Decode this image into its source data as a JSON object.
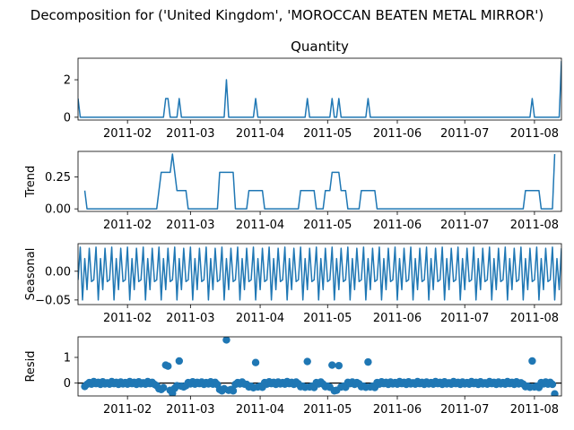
{
  "figure": {
    "suptitle": "Decomposition for ('United Kingdom', 'MOROCCAN BEATEN METAL MIRROR')",
    "line_color": "#1f77b4",
    "zero_line_color": "#000000"
  },
  "chart_data": [
    {
      "type": "line",
      "title": "Quantity",
      "ylabel": "",
      "x_ticks": [
        "2011-02",
        "2011-03",
        "2011-04",
        "2011-05",
        "2011-06",
        "2011-07",
        "2011-08"
      ],
      "y_ticks": [
        "0",
        "2"
      ],
      "ylim": [
        -0.15,
        3.15
      ],
      "start_date": "2011-01-10",
      "end_date": "2011-08-13",
      "spikes": [
        {
          "date": "2011-01-10",
          "value": 1
        },
        {
          "date": "2011-02-18",
          "value": 1
        },
        {
          "date": "2011-02-19",
          "value": 1
        },
        {
          "date": "2011-02-24",
          "value": 1
        },
        {
          "date": "2011-03-17",
          "value": 2
        },
        {
          "date": "2011-03-30",
          "value": 1
        },
        {
          "date": "2011-04-22",
          "value": 1
        },
        {
          "date": "2011-05-03",
          "value": 1
        },
        {
          "date": "2011-05-06",
          "value": 1
        },
        {
          "date": "2011-05-19",
          "value": 1
        },
        {
          "date": "2011-07-31",
          "value": 1
        },
        {
          "date": "2011-08-13",
          "value": 3
        }
      ],
      "baseline": 0
    },
    {
      "type": "line",
      "title": "",
      "ylabel": "Trend",
      "x_ticks": [
        "2011-02",
        "2011-03",
        "2011-04",
        "2011-05",
        "2011-06",
        "2011-07",
        "2011-08"
      ],
      "y_ticks": [
        "0.00",
        "0.25"
      ],
      "ylim": [
        -0.02,
        0.45
      ],
      "points": [
        [
          "2011-01-13",
          0.143
        ],
        [
          "2011-01-14",
          0.0
        ],
        [
          "2011-02-14",
          0.0
        ],
        [
          "2011-02-16",
          0.286
        ],
        [
          "2011-02-20",
          0.286
        ],
        [
          "2011-02-21",
          0.429
        ],
        [
          "2011-02-23",
          0.143
        ],
        [
          "2011-02-27",
          0.143
        ],
        [
          "2011-02-28",
          0.0
        ],
        [
          "2011-03-13",
          0.0
        ],
        [
          "2011-03-14",
          0.286
        ],
        [
          "2011-03-20",
          0.286
        ],
        [
          "2011-03-21",
          0.0
        ],
        [
          "2011-03-26",
          0.0
        ],
        [
          "2011-03-27",
          0.143
        ],
        [
          "2011-04-02",
          0.143
        ],
        [
          "2011-04-03",
          0.0
        ],
        [
          "2011-04-18",
          0.0
        ],
        [
          "2011-04-19",
          0.143
        ],
        [
          "2011-04-25",
          0.143
        ],
        [
          "2011-04-26",
          0.0
        ],
        [
          "2011-04-29",
          0.0
        ],
        [
          "2011-04-30",
          0.143
        ],
        [
          "2011-05-02",
          0.143
        ],
        [
          "2011-05-03",
          0.286
        ],
        [
          "2011-05-06",
          0.286
        ],
        [
          "2011-05-07",
          0.143
        ],
        [
          "2011-05-09",
          0.143
        ],
        [
          "2011-05-10",
          0.0
        ],
        [
          "2011-05-15",
          0.0
        ],
        [
          "2011-05-16",
          0.143
        ],
        [
          "2011-05-22",
          0.143
        ],
        [
          "2011-05-23",
          0.0
        ],
        [
          "2011-07-27",
          0.0
        ],
        [
          "2011-07-28",
          0.143
        ],
        [
          "2011-08-03",
          0.143
        ],
        [
          "2011-08-04",
          0.0
        ],
        [
          "2011-08-09",
          0.0
        ],
        [
          "2011-08-10",
          0.429
        ]
      ]
    },
    {
      "type": "line",
      "title": "",
      "ylabel": "Seasonal",
      "x_ticks": [
        "2011-02",
        "2011-03",
        "2011-04",
        "2011-05",
        "2011-06",
        "2011-07",
        "2011-08"
      ],
      "y_ticks": [
        "−0.05",
        "0.00"
      ],
      "ylim": [
        -0.058,
        0.048
      ],
      "start_date": "2011-01-10",
      "end_date": "2011-08-13",
      "weekly_pattern": [
        -0.015,
        0.042,
        -0.05,
        0.022,
        -0.032,
        0.04,
        -0.018
      ]
    },
    {
      "type": "scatter",
      "title": "",
      "ylabel": "Resid",
      "x_ticks": [
        "2011-02",
        "2011-03",
        "2011-04",
        "2011-05",
        "2011-06",
        "2011-07",
        "2011-08"
      ],
      "y_ticks": [
        "0",
        "1"
      ],
      "ylim": [
        -0.5,
        1.8
      ],
      "zero_line": 0,
      "points": [
        [
          "2011-01-13",
          -0.13
        ],
        [
          "2011-01-14",
          -0.05
        ],
        [
          "2011-01-15",
          0.02
        ],
        [
          "2011-01-16",
          -0.04
        ],
        [
          "2011-01-17",
          0.06
        ],
        [
          "2011-01-18",
          -0.02
        ],
        [
          "2011-01-19",
          0.03
        ],
        [
          "2011-01-20",
          -0.05
        ],
        [
          "2011-01-21",
          0.05
        ],
        [
          "2011-01-22",
          -0.03
        ],
        [
          "2011-01-23",
          0.01
        ],
        [
          "2011-01-24",
          -0.04
        ],
        [
          "2011-01-25",
          0.06
        ],
        [
          "2011-01-26",
          -0.02
        ],
        [
          "2011-01-27",
          0.03
        ],
        [
          "2011-01-28",
          -0.05
        ],
        [
          "2011-01-29",
          0.04
        ],
        [
          "2011-01-30",
          -0.03
        ],
        [
          "2011-01-31",
          0.02
        ],
        [
          "2011-02-01",
          -0.04
        ],
        [
          "2011-02-02",
          0.06
        ],
        [
          "2011-02-03",
          -0.02
        ],
        [
          "2011-02-04",
          0.03
        ],
        [
          "2011-02-05",
          -0.05
        ],
        [
          "2011-02-06",
          0.05
        ],
        [
          "2011-02-07",
          -0.03
        ],
        [
          "2011-02-08",
          0.01
        ],
        [
          "2011-02-09",
          -0.04
        ],
        [
          "2011-02-10",
          0.06
        ],
        [
          "2011-02-11",
          -0.02
        ],
        [
          "2011-02-12",
          0.03
        ],
        [
          "2011-02-13",
          -0.05
        ],
        [
          "2011-02-14",
          -0.1
        ],
        [
          "2011-02-15",
          -0.22
        ],
        [
          "2011-02-16",
          -0.25
        ],
        [
          "2011-02-17",
          -0.18
        ],
        [
          "2011-02-18",
          0.7
        ],
        [
          "2011-02-19",
          0.66
        ],
        [
          "2011-02-20",
          -0.28
        ],
        [
          "2011-02-21",
          -0.4
        ],
        [
          "2011-02-22",
          -0.2
        ],
        [
          "2011-02-23",
          -0.1
        ],
        [
          "2011-02-24",
          0.86
        ],
        [
          "2011-02-25",
          -0.12
        ],
        [
          "2011-02-26",
          -0.15
        ],
        [
          "2011-02-27",
          -0.1
        ],
        [
          "2011-02-28",
          0.02
        ],
        [
          "2011-03-01",
          -0.03
        ],
        [
          "2011-03-02",
          0.05
        ],
        [
          "2011-03-03",
          -0.04
        ],
        [
          "2011-03-04",
          0.03
        ],
        [
          "2011-03-05",
          -0.02
        ],
        [
          "2011-03-06",
          0.04
        ],
        [
          "2011-03-07",
          -0.05
        ],
        [
          "2011-03-08",
          0.02
        ],
        [
          "2011-03-09",
          -0.03
        ],
        [
          "2011-03-10",
          0.05
        ],
        [
          "2011-03-11",
          -0.04
        ],
        [
          "2011-03-12",
          0.03
        ],
        [
          "2011-03-13",
          -0.06
        ],
        [
          "2011-03-14",
          -0.25
        ],
        [
          "2011-03-15",
          -0.3
        ],
        [
          "2011-03-16",
          -0.22
        ],
        [
          "2011-03-17",
          1.68
        ],
        [
          "2011-03-18",
          -0.28
        ],
        [
          "2011-03-19",
          -0.25
        ],
        [
          "2011-03-20",
          -0.3
        ],
        [
          "2011-03-21",
          -0.05
        ],
        [
          "2011-03-22",
          0.02
        ],
        [
          "2011-03-23",
          -0.03
        ],
        [
          "2011-03-24",
          0.04
        ],
        [
          "2011-03-25",
          -0.04
        ],
        [
          "2011-03-26",
          -0.05
        ],
        [
          "2011-03-27",
          -0.15
        ],
        [
          "2011-03-28",
          -0.12
        ],
        [
          "2011-03-29",
          -0.18
        ],
        [
          "2011-03-30",
          0.8
        ],
        [
          "2011-03-31",
          -0.15
        ],
        [
          "2011-04-01",
          -0.12
        ],
        [
          "2011-04-02",
          -0.16
        ],
        [
          "2011-04-03",
          0.02
        ],
        [
          "2011-04-04",
          -0.04
        ],
        [
          "2011-04-05",
          0.05
        ],
        [
          "2011-04-06",
          -0.02
        ],
        [
          "2011-04-07",
          0.03
        ],
        [
          "2011-04-08",
          -0.05
        ],
        [
          "2011-04-09",
          0.04
        ],
        [
          "2011-04-10",
          -0.03
        ],
        [
          "2011-04-11",
          0.02
        ],
        [
          "2011-04-12",
          -0.04
        ],
        [
          "2011-04-13",
          0.06
        ],
        [
          "2011-04-14",
          -0.02
        ],
        [
          "2011-04-15",
          0.03
        ],
        [
          "2011-04-16",
          -0.05
        ],
        [
          "2011-04-17",
          0.04
        ],
        [
          "2011-04-18",
          -0.03
        ],
        [
          "2011-04-19",
          -0.14
        ],
        [
          "2011-04-20",
          -0.12
        ],
        [
          "2011-04-21",
          -0.16
        ],
        [
          "2011-04-22",
          0.84
        ],
        [
          "2011-04-23",
          -0.15
        ],
        [
          "2011-04-24",
          -0.12
        ],
        [
          "2011-04-25",
          -0.17
        ],
        [
          "2011-04-26",
          0.02
        ],
        [
          "2011-04-27",
          -0.03
        ],
        [
          "2011-04-28",
          0.04
        ],
        [
          "2011-04-29",
          -0.04
        ],
        [
          "2011-04-30",
          -0.14
        ],
        [
          "2011-05-01",
          -0.12
        ],
        [
          "2011-05-02",
          -0.16
        ],
        [
          "2011-05-03",
          0.7
        ],
        [
          "2011-05-04",
          -0.3
        ],
        [
          "2011-05-05",
          -0.28
        ],
        [
          "2011-05-06",
          0.68
        ],
        [
          "2011-05-07",
          -0.15
        ],
        [
          "2011-05-08",
          -0.12
        ],
        [
          "2011-05-09",
          -0.16
        ],
        [
          "2011-05-10",
          0.03
        ],
        [
          "2011-05-11",
          -0.02
        ],
        [
          "2011-05-12",
          0.04
        ],
        [
          "2011-05-13",
          -0.05
        ],
        [
          "2011-05-14",
          0.02
        ],
        [
          "2011-05-15",
          -0.03
        ],
        [
          "2011-05-16",
          -0.14
        ],
        [
          "2011-05-17",
          -0.12
        ],
        [
          "2011-05-18",
          -0.16
        ],
        [
          "2011-05-19",
          0.82
        ],
        [
          "2011-05-20",
          -0.15
        ],
        [
          "2011-05-21",
          -0.12
        ],
        [
          "2011-05-22",
          -0.17
        ],
        [
          "2011-05-23",
          0.02
        ],
        [
          "2011-05-24",
          -0.04
        ],
        [
          "2011-05-25",
          0.05
        ],
        [
          "2011-05-26",
          -0.02
        ],
        [
          "2011-05-27",
          0.03
        ],
        [
          "2011-05-28",
          -0.05
        ],
        [
          "2011-05-29",
          0.04
        ],
        [
          "2011-05-30",
          -0.03
        ],
        [
          "2011-05-31",
          0.02
        ],
        [
          "2011-06-01",
          -0.04
        ],
        [
          "2011-06-02",
          0.06
        ],
        [
          "2011-06-03",
          -0.02
        ],
        [
          "2011-06-04",
          0.03
        ],
        [
          "2011-06-05",
          -0.05
        ],
        [
          "2011-06-06",
          0.05
        ],
        [
          "2011-06-07",
          -0.03
        ],
        [
          "2011-06-08",
          0.01
        ],
        [
          "2011-06-09",
          -0.04
        ],
        [
          "2011-06-10",
          0.06
        ],
        [
          "2011-06-11",
          -0.02
        ],
        [
          "2011-06-12",
          0.03
        ],
        [
          "2011-06-13",
          -0.05
        ],
        [
          "2011-06-14",
          0.04
        ],
        [
          "2011-06-15",
          -0.03
        ],
        [
          "2011-06-16",
          0.02
        ],
        [
          "2011-06-17",
          -0.04
        ],
        [
          "2011-06-18",
          0.06
        ],
        [
          "2011-06-19",
          -0.02
        ],
        [
          "2011-06-20",
          0.03
        ],
        [
          "2011-06-21",
          -0.05
        ],
        [
          "2011-06-22",
          0.05
        ],
        [
          "2011-06-23",
          -0.03
        ],
        [
          "2011-06-24",
          0.01
        ],
        [
          "2011-06-25",
          -0.04
        ],
        [
          "2011-06-26",
          0.06
        ],
        [
          "2011-06-27",
          -0.02
        ],
        [
          "2011-06-28",
          0.03
        ],
        [
          "2011-06-29",
          -0.05
        ],
        [
          "2011-06-30",
          0.04
        ],
        [
          "2011-07-01",
          -0.03
        ],
        [
          "2011-07-02",
          0.02
        ],
        [
          "2011-07-03",
          -0.04
        ],
        [
          "2011-07-04",
          0.06
        ],
        [
          "2011-07-05",
          -0.02
        ],
        [
          "2011-07-06",
          0.03
        ],
        [
          "2011-07-07",
          -0.05
        ],
        [
          "2011-07-08",
          0.05
        ],
        [
          "2011-07-09",
          -0.03
        ],
        [
          "2011-07-10",
          0.01
        ],
        [
          "2011-07-11",
          -0.04
        ],
        [
          "2011-07-12",
          0.06
        ],
        [
          "2011-07-13",
          -0.02
        ],
        [
          "2011-07-14",
          0.03
        ],
        [
          "2011-07-15",
          -0.05
        ],
        [
          "2011-07-16",
          0.04
        ],
        [
          "2011-07-17",
          -0.03
        ],
        [
          "2011-07-18",
          0.02
        ],
        [
          "2011-07-19",
          -0.04
        ],
        [
          "2011-07-20",
          0.06
        ],
        [
          "2011-07-21",
          -0.02
        ],
        [
          "2011-07-22",
          0.03
        ],
        [
          "2011-07-23",
          -0.05
        ],
        [
          "2011-07-24",
          0.05
        ],
        [
          "2011-07-25",
          -0.03
        ],
        [
          "2011-07-26",
          0.01
        ],
        [
          "2011-07-27",
          -0.04
        ],
        [
          "2011-07-28",
          -0.14
        ],
        [
          "2011-07-29",
          -0.12
        ],
        [
          "2011-07-30",
          -0.16
        ],
        [
          "2011-07-31",
          0.86
        ],
        [
          "2011-08-01",
          -0.15
        ],
        [
          "2011-08-02",
          -0.12
        ],
        [
          "2011-08-03",
          -0.17
        ],
        [
          "2011-08-04",
          0.02
        ],
        [
          "2011-08-05",
          -0.03
        ],
        [
          "2011-08-06",
          0.04
        ],
        [
          "2011-08-07",
          -0.04
        ],
        [
          "2011-08-08",
          0.03
        ],
        [
          "2011-08-09",
          -0.05
        ],
        [
          "2011-08-10",
          -0.42
        ]
      ]
    }
  ]
}
